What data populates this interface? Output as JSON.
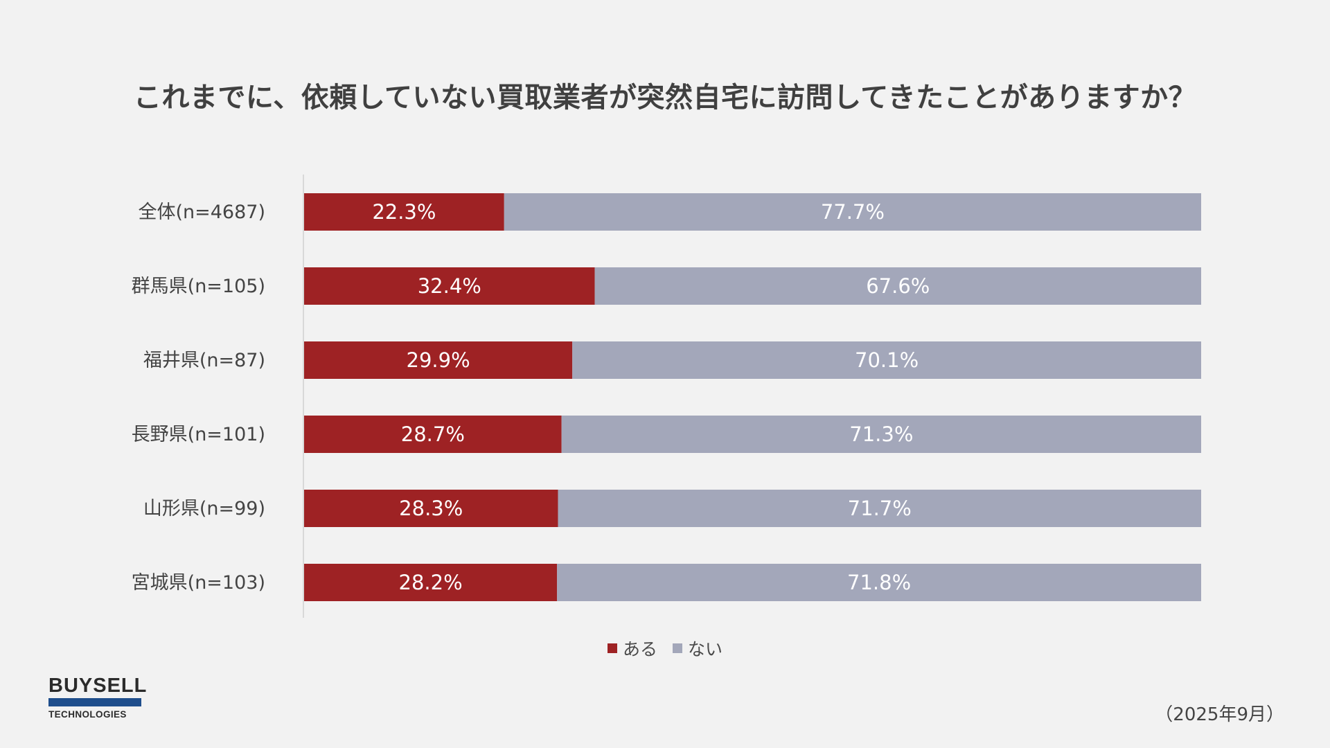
{
  "title": "これまでに、依頼していない買取業者が突然自宅に訪問してきたことがありますか？",
  "colors": {
    "background": "#f2f2f2",
    "aru": "#9e2224",
    "nai": "#a3a7ba",
    "axis": "#d0d0d0",
    "label_text": "#ffffff"
  },
  "chart_data": {
    "type": "bar",
    "orientation": "horizontal",
    "stacked": true,
    "percent_stacked": true,
    "categories": [
      "全体(n=4687)",
      "群馬県(n=105)",
      "福井県(n=87)",
      "長野県(n=101)",
      "山形県(n=99)",
      "宮城県(n=103)"
    ],
    "series": [
      {
        "name": "ある",
        "color": "#9e2224",
        "values": [
          22.3,
          32.4,
          29.9,
          28.7,
          28.3,
          28.2
        ],
        "labels": [
          "22.3%",
          "32.4%",
          "29.9%",
          "28.7%",
          "28.3%",
          "28.2%"
        ]
      },
      {
        "name": "ない",
        "color": "#a3a7ba",
        "values": [
          77.7,
          67.6,
          70.1,
          71.3,
          71.7,
          71.8
        ],
        "labels": [
          "77.7%",
          "67.6%",
          "70.1%",
          "71.3%",
          "71.7%",
          "71.8%"
        ]
      }
    ],
    "xlim": [
      0,
      100
    ],
    "grid": false,
    "legend_position": "bottom"
  },
  "legend": {
    "items": [
      {
        "label": "ある",
        "color": "#9e2224"
      },
      {
        "label": "ない",
        "color": "#a3a7ba"
      }
    ]
  },
  "logo": {
    "top": "BUYSELL",
    "bottom": "TECHNOLOGIES",
    "accent": "#1f4e8c"
  },
  "footnote": "（2025年9月）"
}
